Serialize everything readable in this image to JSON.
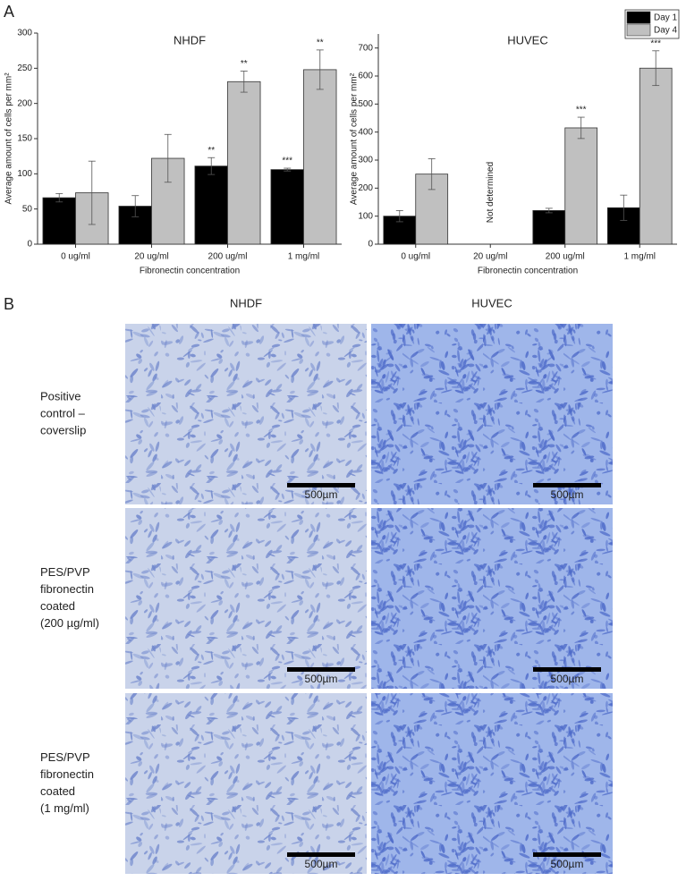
{
  "chart_data": [
    {
      "type": "bar",
      "panel": "A",
      "title": "NHDF",
      "ylabel": "Average amount of cells per mm²",
      "xlabel": "Fibronectin concentration",
      "categories": [
        "0 ug/ml",
        "20 ug/ml",
        "200 ug/ml",
        "1 mg/ml"
      ],
      "series": [
        {
          "name": "Day 1",
          "color": "#000000",
          "values": [
            66,
            54,
            111,
            106
          ],
          "errors": [
            6,
            15,
            12,
            2
          ],
          "significance": [
            null,
            null,
            "**",
            "***"
          ]
        },
        {
          "name": "Day 4",
          "color": "#c0c0c0",
          "values": [
            73,
            122,
            231,
            248
          ],
          "errors": [
            45,
            34,
            15,
            28
          ],
          "significance": [
            null,
            null,
            "**",
            "**"
          ]
        }
      ],
      "ylim": [
        0,
        300
      ],
      "yticks": [
        0,
        50,
        100,
        150,
        200,
        250,
        300
      ]
    },
    {
      "type": "bar",
      "title": "HUVEC",
      "ylabel": "Average amount of cells per mm²",
      "xlabel": "Fibronectin concentration",
      "categories": [
        "0 ug/ml",
        "20 ug/ml",
        "200 ug/ml",
        "1 mg/ml"
      ],
      "series": [
        {
          "name": "Day 1",
          "color": "#000000",
          "values": [
            100,
            null,
            120,
            130
          ],
          "errors": [
            20,
            null,
            8,
            45
          ],
          "significance": [
            null,
            null,
            null,
            null
          ]
        },
        {
          "name": "Day 4",
          "color": "#c0c0c0",
          "values": [
            250,
            null,
            415,
            628
          ],
          "errors": [
            55,
            null,
            38,
            62
          ],
          "significance": [
            null,
            null,
            "***",
            "***"
          ]
        }
      ],
      "na_label": "Not determined",
      "ylim": [
        0,
        750
      ],
      "yticks": [
        0,
        100,
        200,
        300,
        400,
        500,
        600,
        700
      ],
      "legend": "upper right"
    }
  ],
  "panel_b": {
    "label": "B",
    "columns": [
      "NHDF",
      "HUVEC"
    ],
    "rows": [
      {
        "label": [
          "Positive",
          "control –",
          "coverslip"
        ],
        "scale_bars": [
          "500µm",
          "500µm"
        ]
      },
      {
        "label": [
          "PES/PVP",
          "fibronectin",
          "coated",
          "(200 µg/ml)"
        ],
        "scale_bars": [
          "500µm",
          "500µm"
        ]
      },
      {
        "label": [
          "PES/PVP",
          "fibronectin",
          "coated",
          "(1 mg/ml)"
        ],
        "scale_bars": [
          "500µm",
          "500µm"
        ]
      }
    ]
  }
}
